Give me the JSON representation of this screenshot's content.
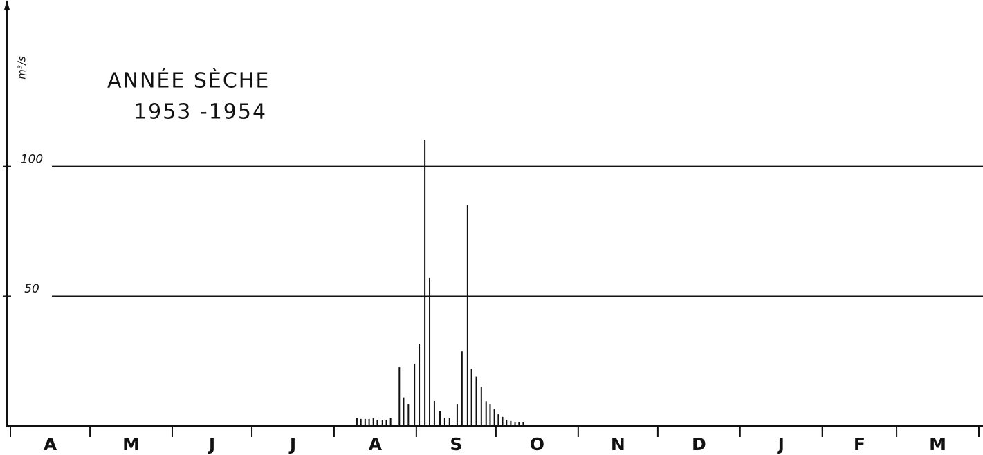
{
  "chart_data": {
    "type": "bar",
    "title": "ANNÉE SÈCHE",
    "subtitle": "1953 -1954",
    "y_label": "m³/s",
    "color": "#111111",
    "xlim": [
      0,
      365
    ],
    "ylim": [
      0,
      164
    ],
    "yticks": [
      50,
      100
    ],
    "grid": true,
    "months": {
      "labels": [
        "A",
        "M",
        "J",
        "J",
        "A",
        "S",
        "O",
        "N",
        "D",
        "J",
        "F",
        "M"
      ],
      "starts": [
        0,
        30,
        61,
        91,
        122,
        153,
        183,
        214,
        244,
        275,
        306,
        334,
        365
      ]
    },
    "x": [
      130.6,
      132.1,
      133.7,
      135.2,
      136.8,
      138.3,
      140.2,
      141.7,
      143.3,
      146.6,
      148.2,
      150.0,
      152.3,
      154.1,
      156.2,
      158.0,
      159.8,
      161.9,
      163.7,
      165.5,
      168.4,
      170.2,
      172.3,
      173.8,
      175.6,
      177.5,
      179.3,
      180.8,
      182.4,
      183.9,
      185.5,
      187.0,
      188.6,
      190.2,
      191.7,
      193.3
    ],
    "values": [
      3,
      2.7,
      2.7,
      2.7,
      3,
      2.4,
      2.4,
      2.4,
      3,
      22.6,
      11,
      8.5,
      24,
      31.6,
      110,
      57,
      9.6,
      5.6,
      3.2,
      3.2,
      8.5,
      28.7,
      85,
      22,
      19,
      15,
      9.5,
      8.5,
      6.4,
      4.5,
      3.5,
      2.4,
      1.9,
      1.6,
      1.6,
      1.6
    ]
  }
}
